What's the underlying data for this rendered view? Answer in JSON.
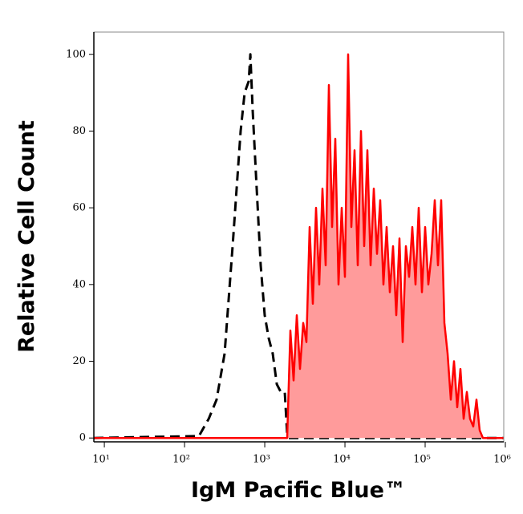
{
  "chart_data": {
    "type": "histogram-line",
    "x_label": "IgM Pacific Blue™",
    "y_label": "Relative Cell Count",
    "xscale": "log",
    "xlim": [
      7.4,
      955000
    ],
    "ylim": [
      -1,
      105.8
    ],
    "xticks": [
      {
        "value": 10,
        "label": "10¹"
      },
      {
        "value": 100,
        "label": "10²"
      },
      {
        "value": 1000,
        "label": "10³"
      },
      {
        "value": 10000,
        "label": "10⁴"
      },
      {
        "value": 100000,
        "label": "10⁵"
      },
      {
        "value": 1000000,
        "label": "10⁶"
      }
    ],
    "yticks": [
      0,
      20,
      40,
      60,
      80,
      100
    ],
    "series": [
      {
        "color": "#000000",
        "dash": true,
        "x": [
          7.4,
          151,
          200,
          251,
          316,
          398,
          501,
          562,
          631,
          661,
          708,
          794,
          891,
          1000,
          1122,
          1259,
          1413,
          1585,
          1778,
          1905,
          1995,
          955000
        ],
        "values": [
          0,
          0.5,
          5,
          10,
          22,
          50,
          80,
          90,
          93,
          100,
          85,
          65,
          45,
          32,
          26,
          22,
          14,
          12,
          12,
          1,
          0,
          0
        ]
      },
      {
        "color": "#ff0000",
        "fill": "#ff9b9b",
        "dash": false,
        "x": [
          7.4,
          1905,
          2089,
          2291,
          2512,
          2754,
          3020,
          3311,
          3631,
          3981,
          4365,
          4786,
          5248,
          5754,
          6310,
          6918,
          7586,
          8318,
          9120,
          10000,
          10965,
          12023,
          13183,
          14454,
          15849,
          17378,
          19055,
          20893,
          22909,
          25119,
          27542,
          30200,
          33113,
          36308,
          39811,
          43652,
          47863,
          52481,
          57544,
          63096,
          69183,
          75858,
          83176,
          91201,
          100000,
          109648,
          120226,
          131826,
          144544,
          158489,
          173780,
          190546,
          208930,
          229087,
          251189,
          275423,
          301995,
          331131,
          363078,
          398107,
          436516,
          478630,
          524807,
          955000
        ],
        "values": [
          0,
          0,
          28,
          15,
          32,
          18,
          30,
          25,
          55,
          35,
          60,
          40,
          65,
          45,
          92,
          55,
          78,
          40,
          60,
          42,
          100,
          55,
          75,
          45,
          80,
          50,
          75,
          45,
          65,
          48,
          62,
          40,
          55,
          38,
          50,
          32,
          52,
          25,
          50,
          42,
          55,
          40,
          60,
          38,
          55,
          40,
          48,
          62,
          45,
          62,
          30,
          22,
          10,
          20,
          8,
          18,
          5,
          12,
          5,
          3,
          10,
          2,
          0,
          0
        ]
      }
    ]
  }
}
